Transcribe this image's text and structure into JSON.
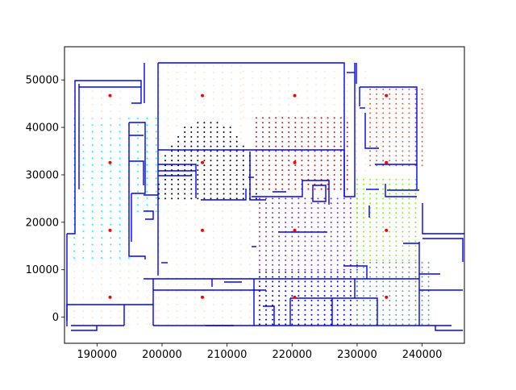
{
  "chart_data": {
    "type": "scatter",
    "title": "",
    "xlabel": "",
    "ylabel": "",
    "xlim": [
      185000,
      246500
    ],
    "ylim": [
      -5500,
      57000
    ],
    "grid": false,
    "x_ticks": [
      190000,
      200000,
      210000,
      220000,
      230000,
      240000
    ],
    "y_ticks": [
      0,
      10000,
      20000,
      30000,
      40000,
      50000
    ],
    "x_tick_labels": [
      "190000",
      "200000",
      "210000",
      "220000",
      "230000",
      "240000"
    ],
    "y_tick_labels": [
      "0",
      "10000",
      "20000",
      "30000",
      "40000",
      "50000"
    ],
    "colors": {
      "walls": "#0000ff",
      "centers": "#ff0000",
      "frame": "#000000"
    },
    "centers": {
      "x": [
        192000,
        206200,
        220400,
        234500
      ],
      "y": [
        4200,
        18300,
        32600,
        46700
      ]
    },
    "zones": [
      {
        "color": "#00ffff",
        "x": [
          186500,
          199500
        ],
        "y": [
          12500,
          42000
        ],
        "step": 1400,
        "shape": "left-wing"
      },
      {
        "color": "#ffe4d2",
        "x": [
          186500,
          199500
        ],
        "y": [
          -1500,
          12000
        ],
        "step": 1400
      },
      {
        "color": "#ffe4d2",
        "x": [
          199500,
          215000
        ],
        "y": [
          -1500,
          25000
        ],
        "step": 1400
      },
      {
        "color": "#ffe4d2",
        "x": [
          199500,
          212500
        ],
        "y": [
          25000,
          53000
        ],
        "step": 1400,
        "shape": "upper-rim"
      },
      {
        "color": "#ffe4d2",
        "x": [
          186500,
          193500
        ],
        "y": [
          42000,
          48000
        ],
        "step": 1400
      },
      {
        "color": "#000000",
        "x": [
          199500,
          214500
        ],
        "y": [
          25000,
          41500
        ],
        "step": 1000,
        "shape": "dome"
      },
      {
        "color": "#ffe4d2",
        "x": [
          212500,
          228000
        ],
        "y": [
          42000,
          53000
        ],
        "step": 1400
      },
      {
        "color": "#b22222",
        "x": [
          214500,
          228500
        ],
        "y": [
          27000,
          42000
        ],
        "step": 1000
      },
      {
        "color": "#7b2fd8",
        "x": [
          215000,
          230000
        ],
        "y": [
          10000,
          25000
        ],
        "step": 1000
      },
      {
        "color": "#ffe4d2",
        "x": [
          228500,
          232000
        ],
        "y": [
          14000,
          53000
        ],
        "step": 1400
      },
      {
        "color": "#0000ff",
        "x": [
          215000,
          230000
        ],
        "y": [
          -1500,
          10000
        ],
        "step": 1000
      },
      {
        "color": "#e85a3a",
        "x": [
          232000,
          240000
        ],
        "y": [
          32000,
          48000
        ],
        "step": 1000
      },
      {
        "color": "#7cfc00",
        "x": [
          230000,
          239500
        ],
        "y": [
          12000,
          29000
        ],
        "step": 1000
      },
      {
        "color": "#5f9ea0",
        "x": [
          230000,
          241000
        ],
        "y": [
          -1500,
          12000
        ],
        "step": 1000
      }
    ]
  }
}
